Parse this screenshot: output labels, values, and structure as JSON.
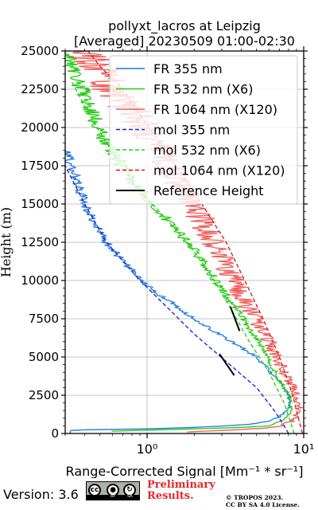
{
  "chart_data": {
    "type": "line",
    "title": "pollyxt_lacros at Leipzig",
    "subtitle": "[Averaged] 20230509 01:00-02:30",
    "xlabel": "Range-Corrected Signal [Mm⁻¹ * sr⁻¹]",
    "ylabel": "Height (m)",
    "xscale": "log",
    "xlim": [
      0.3,
      10
    ],
    "ylim": [
      0,
      25000
    ],
    "x_tick_labels": [
      "10⁰",
      "10¹"
    ],
    "y_ticks": [
      0,
      2500,
      5000,
      7500,
      10000,
      12500,
      15000,
      17500,
      20000,
      22500,
      25000
    ],
    "y_tick_labels": [
      "0",
      "2500",
      "5000",
      "7500",
      "10000",
      "12500",
      "15000",
      "17500",
      "20000",
      "22500",
      "25000"
    ],
    "grid": true,
    "legend_position": "top-right",
    "series": [
      {
        "name": "FR 355 nm",
        "style": "solid",
        "color": "#1f77e0",
        "noise": 0.05,
        "x": [
          0.32,
          0.33,
          0.4,
          0.45,
          1.0,
          2.0,
          3.2,
          4.5,
          6.0,
          7.0,
          8.0,
          8.2,
          7.6,
          5.0,
          2.0,
          0.9,
          0.55,
          0.4,
          0.34,
          0.3
        ],
        "y": [
          0,
          200,
          240,
          250,
          300,
          400,
          500,
          600,
          800,
          1100,
          1600,
          2200,
          3000,
          5000,
          7500,
          10000,
          12500,
          15000,
          17000,
          18500
        ]
      },
      {
        "name": "FR 532 nm (X6)",
        "style": "solid",
        "color": "#22cc11",
        "noise": 0.06,
        "x": [
          0.6,
          2.0,
          4.0,
          6.0,
          7.5,
          8.5,
          8.0,
          7.0,
          5.2,
          3.5,
          2.0,
          1.2,
          0.8,
          0.55,
          0.42,
          0.35,
          0.3
        ],
        "y": [
          150,
          300,
          400,
          500,
          900,
          1500,
          2500,
          3500,
          6000,
          8500,
          12000,
          14500,
          16500,
          19000,
          21500,
          23500,
          25000
        ]
      },
      {
        "name": "FR 1064 nm (X120)",
        "style": "solid",
        "color": "#f05a5a",
        "noise": 0.14,
        "x": [
          1.8,
          3.0,
          4.5,
          6.5,
          8.5,
          9.5,
          9.0,
          7.5,
          6.0,
          4.0,
          3.0,
          2.2,
          1.6,
          1.2,
          0.9,
          0.65,
          0.5,
          0.42
        ],
        "y": [
          100,
          200,
          300,
          400,
          800,
          1500,
          2500,
          4000,
          6000,
          9000,
          11500,
          14000,
          16500,
          18500,
          20500,
          22000,
          23500,
          25000
        ]
      },
      {
        "name": "mol 355 nm",
        "style": "dashed",
        "color": "#1a1acc",
        "x": [
          8.0,
          7.5,
          6.5,
          5.0,
          2.0,
          0.9,
          0.55,
          0.4,
          0.3
        ],
        "y": [
          0,
          500,
          1500,
          3000,
          6500,
          10000,
          12500,
          15000,
          17500
        ]
      },
      {
        "name": "mol 532 nm (X6)",
        "style": "dashed",
        "color": "#22cc11",
        "x": [
          8.7,
          7.5,
          6.0,
          4.5,
          3.5,
          2.5,
          1.8,
          1.2,
          0.8,
          0.55,
          0.42,
          0.33
        ],
        "y": [
          0,
          2000,
          4000,
          6000,
          8000,
          10500,
          12500,
          14500,
          16500,
          19000,
          21000,
          23000
        ]
      },
      {
        "name": "mol 1064 nm (X120)",
        "style": "dashed",
        "color": "#dd1111",
        "x": [
          9.8,
          8.5,
          7.0,
          5.5,
          4.2,
          3.2,
          2.4,
          1.8,
          1.3,
          0.95,
          0.7,
          0.5,
          0.42
        ],
        "y": [
          0,
          2500,
          5000,
          7500,
          10000,
          12500,
          14500,
          16500,
          18500,
          20500,
          22500,
          24000,
          25000
        ]
      },
      {
        "name": "Reference Height",
        "style": "solid",
        "color": "#000000",
        "segments": [
          {
            "x": [
              2.9,
              3.6
            ],
            "y": [
              5200,
              3800
            ]
          },
          {
            "x": [
              3.4,
              3.9
            ],
            "y": [
              8300,
              6700
            ]
          }
        ]
      }
    ]
  },
  "footer": {
    "version": "Version: 3.6",
    "badge": {
      "cc": "cc",
      "by_label": "BY",
      "sa_label": "SA"
    },
    "preliminary": [
      "Preliminary",
      "Results."
    ],
    "copyright": [
      "© TROPOS 2023.",
      "CC BY SA 4.0 License."
    ]
  }
}
